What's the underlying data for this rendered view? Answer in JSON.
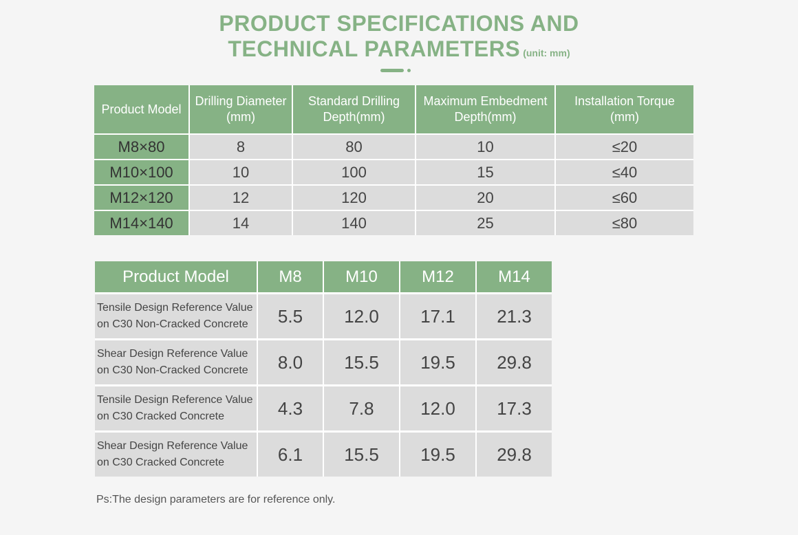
{
  "title": {
    "line1": "PRODUCT SPECIFICATIONS AND",
    "line2": "TECHNICAL PARAMETERS",
    "unit": "(unit: mm)"
  },
  "spec_table": {
    "headers": [
      "Product Model",
      "Drilling Diameter\n(mm)",
      "Standard Drilling\nDepth(mm)",
      "Maximum Embedment\nDepth(mm)",
      "Installation Torque\n(mm)"
    ],
    "rows": [
      [
        "M8×80",
        "8",
        "80",
        "10",
        "≤20"
      ],
      [
        "M10×100",
        "10",
        "100",
        "15",
        "≤40"
      ],
      [
        "M12×120",
        "12",
        "120",
        "20",
        "≤60"
      ],
      [
        "M14×140",
        "14",
        "140",
        "25",
        "≤80"
      ]
    ]
  },
  "design_table": {
    "headers": [
      "Product Model",
      "M8",
      "M10",
      "M12",
      "M14"
    ],
    "rows": [
      [
        "Tensile Design Reference Value\non C30 Non-Cracked Concrete",
        "5.5",
        "12.0",
        "17.1",
        "21.3"
      ],
      [
        "Shear Design Reference Value\non C30 Non-Cracked Concrete",
        "8.0",
        "15.5",
        "19.5",
        "29.8"
      ],
      [
        "Tensile Design Reference Value\non C30 Cracked Concrete",
        "4.3",
        "7.8",
        "12.0",
        "17.3"
      ],
      [
        "Shear Design Reference Value\non C30 Cracked Concrete",
        "6.1",
        "15.5",
        "19.5",
        "29.8"
      ]
    ]
  },
  "note": "Ps:The design parameters are for reference only.",
  "colors": {
    "accent": "#86b285",
    "cell": "#dcdcdc",
    "background": "#f5f5f5"
  }
}
